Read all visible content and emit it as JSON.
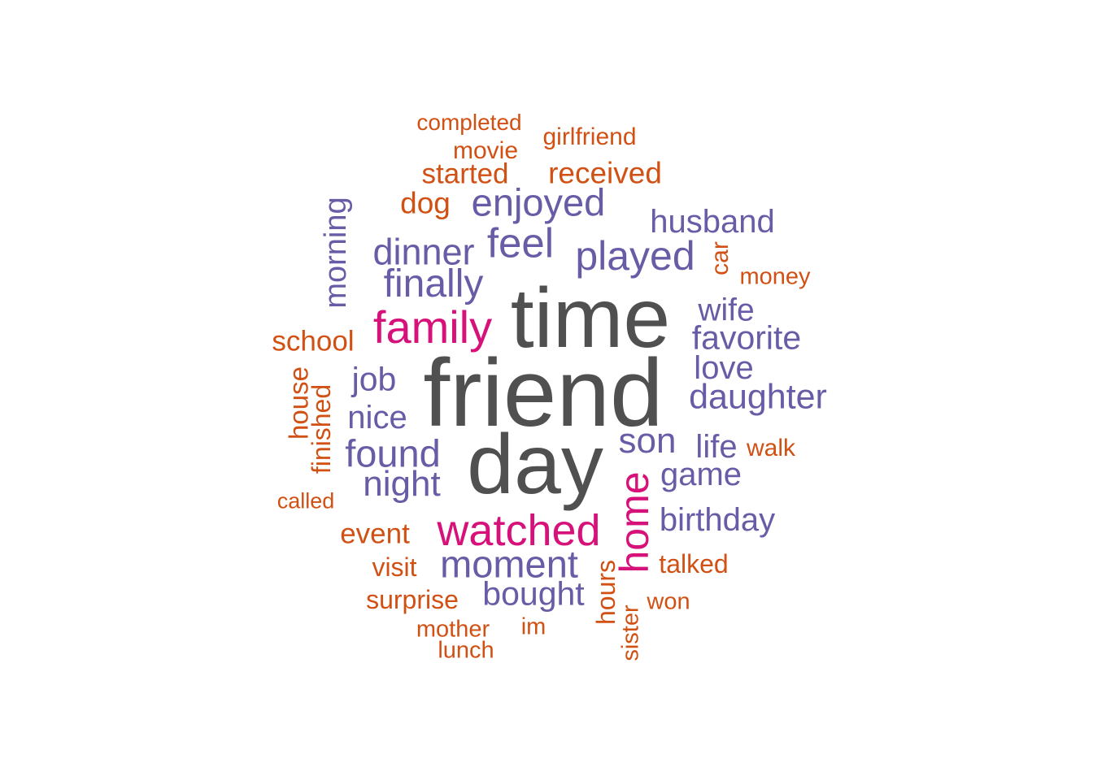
{
  "colors": {
    "grey": "#505050",
    "magenta": "#d6117a",
    "purple": "#675ca6",
    "orange": "#d15114"
  },
  "words": [
    {
      "text": "friend",
      "color_key": "grey"
    },
    {
      "text": "time",
      "color_key": "grey"
    },
    {
      "text": "day",
      "color_key": "grey"
    },
    {
      "text": "family",
      "color_key": "magenta"
    },
    {
      "text": "watched",
      "color_key": "magenta"
    },
    {
      "text": "home",
      "color_key": "magenta"
    },
    {
      "text": "enjoyed",
      "color_key": "purple"
    },
    {
      "text": "feel",
      "color_key": "purple"
    },
    {
      "text": "played",
      "color_key": "purple"
    },
    {
      "text": "dinner",
      "color_key": "purple"
    },
    {
      "text": "finally",
      "color_key": "purple"
    },
    {
      "text": "husband",
      "color_key": "purple"
    },
    {
      "text": "morning",
      "color_key": "purple"
    },
    {
      "text": "wife",
      "color_key": "purple"
    },
    {
      "text": "favorite",
      "color_key": "purple"
    },
    {
      "text": "love",
      "color_key": "purple"
    },
    {
      "text": "daughter",
      "color_key": "purple"
    },
    {
      "text": "job",
      "color_key": "purple"
    },
    {
      "text": "nice",
      "color_key": "purple"
    },
    {
      "text": "son",
      "color_key": "purple"
    },
    {
      "text": "life",
      "color_key": "purple"
    },
    {
      "text": "found",
      "color_key": "purple"
    },
    {
      "text": "game",
      "color_key": "purple"
    },
    {
      "text": "night",
      "color_key": "purple"
    },
    {
      "text": "birthday",
      "color_key": "purple"
    },
    {
      "text": "moment",
      "color_key": "purple"
    },
    {
      "text": "bought",
      "color_key": "purple"
    },
    {
      "text": "completed",
      "color_key": "orange"
    },
    {
      "text": "girlfriend",
      "color_key": "orange"
    },
    {
      "text": "movie",
      "color_key": "orange"
    },
    {
      "text": "started",
      "color_key": "orange"
    },
    {
      "text": "received",
      "color_key": "orange"
    },
    {
      "text": "dog",
      "color_key": "orange"
    },
    {
      "text": "car",
      "color_key": "orange"
    },
    {
      "text": "money",
      "color_key": "orange"
    },
    {
      "text": "school",
      "color_key": "orange"
    },
    {
      "text": "house",
      "color_key": "orange"
    },
    {
      "text": "finished",
      "color_key": "orange"
    },
    {
      "text": "walk",
      "color_key": "orange"
    },
    {
      "text": "called",
      "color_key": "orange"
    },
    {
      "text": "event",
      "color_key": "orange"
    },
    {
      "text": "visit",
      "color_key": "orange"
    },
    {
      "text": "hours",
      "color_key": "orange"
    },
    {
      "text": "talked",
      "color_key": "orange"
    },
    {
      "text": "surprise",
      "color_key": "orange"
    },
    {
      "text": "won",
      "color_key": "orange"
    },
    {
      "text": "mother",
      "color_key": "orange"
    },
    {
      "text": "im",
      "color_key": "orange"
    },
    {
      "text": "sister",
      "color_key": "orange"
    },
    {
      "text": "lunch",
      "color_key": "orange"
    }
  ]
}
